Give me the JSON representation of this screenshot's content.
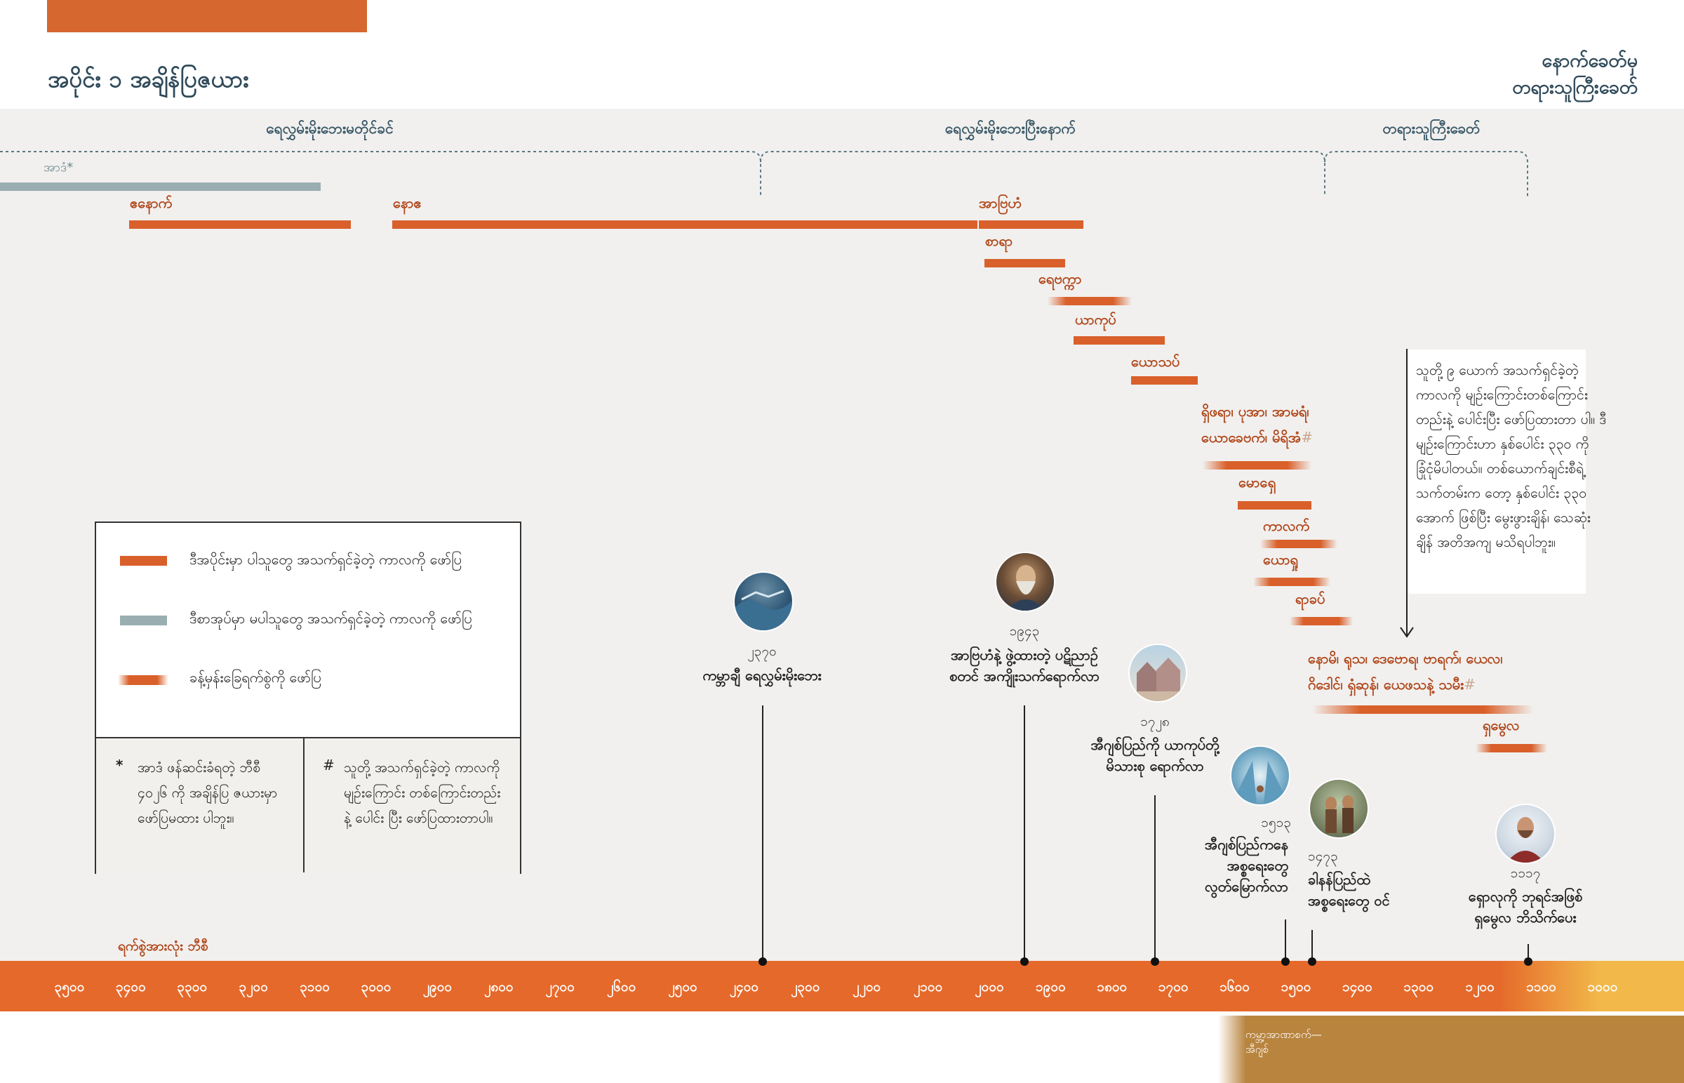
{
  "header": {
    "title": "အပိုင်း ၁ အချိန်ပြဇယား",
    "top_right_line1": "နောက်ခေတ်မှ",
    "top_right_line2": "တရားသူကြီးခေတ်"
  },
  "periods": [
    {
      "label": "ရေလွှမ်းမိုးဘေးမတိုင်ခင်"
    },
    {
      "label": "ရေလွှမ်းမိုးဘေးပြီးနောက်"
    },
    {
      "label": "တရားသူကြီးခေတ်"
    }
  ],
  "adam_label": "အာဒံ*",
  "people": {
    "enoch": "ဧနောက်",
    "noah": "နောဧ",
    "abraham": "အာဗြဟံ",
    "sarah": "စာရာ",
    "rebekah": "ရေဗက္ကာ",
    "jacob": "ယာကုပ်",
    "joseph": "ယောသပ်",
    "shiphrah_line1": "ရှိဖရာ၊ ပုအာ၊ အာမရံ၊",
    "shiphrah_line2": "ယောခေဗက်၊ မိရိအံ",
    "moses": "မောရှေ",
    "caleb": "ကာလက်",
    "joshua": "ယောရှု",
    "rahab": "ရာခပ်",
    "naomi_line1": "နောမိ၊ ရုသ၊ ဒေဗောရ၊ ဗာရက်၊ ယေလ၊",
    "naomi_line2": "ဂိဒေါင်၊ ရှံဆုန်၊ ယေဖသနဲ့ သမီး",
    "samuel": "ရှမွေလ",
    "hash": "#"
  },
  "callout": "သူတို့ ၉ ယောက် အသက်ရှင်ခဲ့တဲ့ ကာလကို မျဉ်းကြောင်းတစ်ကြောင်း တည်းနဲ့ ပေါင်းပြီး ဖော်ပြထားတာ ပါ။ ဒီမျဉ်းကြောင်းဟာ နှစ်ပေါင်း ၃၃၀ ကို ခြုံငုံမိပါတယ်။ တစ်ယောက်ချင်းစီရဲ့ သက်တမ်းက တော့ နှစ်ပေါင်း ၃၃၀ အောက် ဖြစ်ပြီး မွေးဖွားချိန်၊ သေဆုံးချိန် အတိအကျ မသိရပါဘူး။",
  "events": [
    {
      "year": "၂၃၇၀",
      "text_line1": "ကမ္ဘာချီ ရေလွှမ်းမိုးဘေး",
      "text_line2": ""
    },
    {
      "year": "၁၉၄၃",
      "text_line1": "အာဗြဟံနဲ့ ဖွဲ့ထားတဲ့ ပဋိညာဉ်",
      "text_line2": "စတင် အကျိုးသက်ရောက်လာ"
    },
    {
      "year": "၁၇၂၈",
      "text_line1": "အီဂျစ်ပြည်ကို ယာကုပ်တို့",
      "text_line2": "မိသားစု ရောက်လာ"
    },
    {
      "year": "၁၅၁၃",
      "text_line1": "အီဂျစ်ပြည်ကနေ",
      "text_line2": "အစ္စရေးတွေ",
      "text_line3": "လွတ်မြောက်လာ"
    },
    {
      "year": "၁၄၇၃",
      "text_line1": "ခါနန်ပြည်ထဲ",
      "text_line2": "အစ္စရေးတွေ ဝင်"
    },
    {
      "year": "၁၁၁၇",
      "text_line1": "ရှောလုကို ဘုရင်အဖြစ်",
      "text_line2": "ရှမွေလ ဘိသိက်ပေး"
    }
  ],
  "legend": {
    "item1": "ဒီအပိုင်းမှာ ပါသူတွေ အသက်ရှင်ခဲ့တဲ့ ကာလကို ဖော်ပြ",
    "item2": "ဒီစာအုပ်မှာ မပါသူတွေ အသက်ရှင်ခဲ့တဲ့ ကာလကို ဖော်ပြ",
    "item3": "ခန့်မှန်းခြေရက်စွဲကို ဖော်ပြ",
    "note_star_symbol": "*",
    "note_star": "အာဒံ ဖန်ဆင်းခံရတဲ့ ဘီစီ ၄၀၂၆ ကို အချိန်ပြ ဇယားမှာ ဖော်ပြမထား ပါဘူး။",
    "note_hash_symbol": "#",
    "note_hash": "သူတို့ အသက်ရှင်ခဲ့တဲ့ ကာလကို မျဉ်းကြောင်း တစ်ကြောင်းတည်းနဲ့ ပေါင်း ပြီး ဖော်ပြထားတာပါ။"
  },
  "axis": {
    "caption": "ရက်စွဲအားလုံး ဘီစီ",
    "ticks": [
      "၃၅၀၀",
      "၃၄၀၀",
      "၃၃၀၀",
      "၃၂၀၀",
      "၃၁၀၀",
      "၃၀၀၀",
      "၂၉၀၀",
      "၂၈၀၀",
      "၂၇၀၀",
      "၂၆၀၀",
      "၂၅၀၀",
      "၂၄၀၀",
      "၂၃၀၀",
      "၂၂၀၀",
      "၂၁၀၀",
      "၂၀၀၀",
      "၁၉၀၀",
      "၁၈၀၀",
      "၁၇၀၀",
      "၁၆၀၀",
      "၁၅၀၀",
      "၁၄၀၀",
      "၁၃၀၀",
      "၁၂၀၀",
      "၁၁၀၀",
      "၁၀၀၀"
    ]
  },
  "footer": {
    "line1": "ကမ္ဘာ့အာဏာစက်—",
    "line2": "အီဂျစ်"
  },
  "colors": {
    "accent": "#d9602a",
    "gray_bar": "#9aaeb2",
    "axis_end": "#f2b84a",
    "footer": "#b8843e"
  }
}
